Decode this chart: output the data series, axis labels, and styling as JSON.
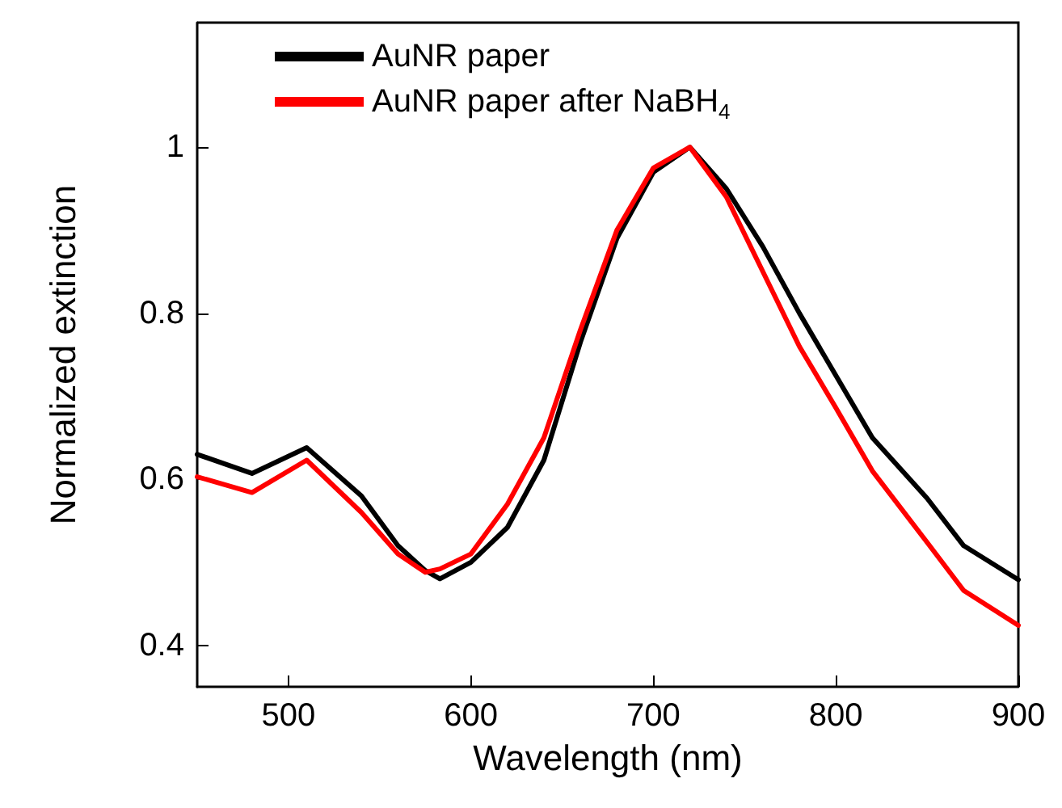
{
  "chart_data": {
    "type": "line",
    "xlabel": "Wavelength (nm)",
    "ylabel": "Normalized extinction",
    "x": [
      450,
      480,
      510,
      540,
      560,
      575,
      583,
      600,
      620,
      640,
      660,
      680,
      700,
      720,
      740,
      760,
      780,
      800,
      820,
      850,
      870,
      900
    ],
    "series": [
      {
        "name": "AuNR paper",
        "color": "#000000",
        "values": [
          0.63,
          0.607,
          0.638,
          0.58,
          0.52,
          0.49,
          0.48,
          0.5,
          0.542,
          0.623,
          0.765,
          0.89,
          0.97,
          1.0,
          0.95,
          0.88,
          0.8,
          0.725,
          0.65,
          0.577,
          0.52,
          0.479
        ]
      },
      {
        "name": "AuNR paper after NaBH$_{4}$",
        "color": "#ff0000",
        "values": [
          0.603,
          0.584,
          0.623,
          0.56,
          0.51,
          0.488,
          0.492,
          0.51,
          0.57,
          0.65,
          0.78,
          0.9,
          0.975,
          1.0,
          0.94,
          0.85,
          0.76,
          0.686,
          0.61,
          0.524,
          0.466,
          0.424
        ]
      }
    ],
    "xlim": [
      450,
      900
    ],
    "xticks": [
      500,
      600,
      700,
      800,
      900
    ],
    "ylim": [
      0.35,
      1.15
    ],
    "yticks": [
      {
        "value": 0.4,
        "label": "0.4"
      },
      {
        "value": 0.6,
        "label": "0.6"
      },
      {
        "value": 0.8,
        "label": "0.8"
      },
      {
        "value": 1.0,
        "label": "1"
      }
    ],
    "grid": false,
    "legend": "top left",
    "marker": "none",
    "line_style": "solid"
  }
}
